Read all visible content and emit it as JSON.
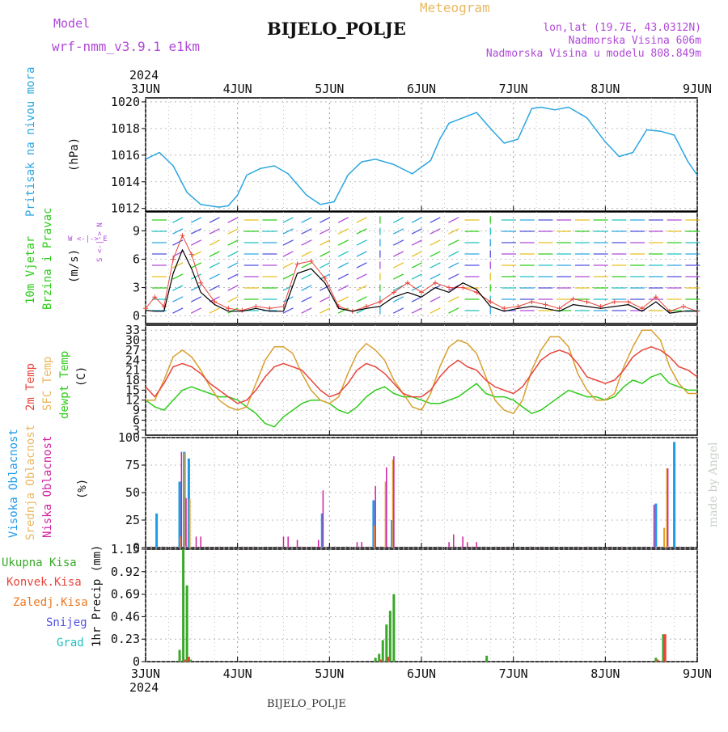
{
  "header": {
    "model_label": "Model",
    "model_name": "wrf-nmm_v3.9.1 e1km",
    "station": "BIJELO_POLJE",
    "product": "Meteogram",
    "location": "lon,lat (19.7E, 43.0312N)",
    "altitude": "Nadmorska Visina 606m",
    "model_altitude": "Nadmorska Visina u modelu 808.849m",
    "year": "2024",
    "footer_station": "BIJELO_POLJE",
    "credit": "made by Angel"
  },
  "colors": {
    "pressure": "#2aa6e0",
    "temp2m": "#e8453c",
    "sfc": "#d8a030",
    "dewpt": "#2ecc1a",
    "high_cloud": "#1e9be8",
    "mid_cloud": "#e0a030",
    "low_cloud": "#d020a0",
    "precip_total": "#3aa82a",
    "precip_conv": "#e8453c",
    "precip_frozen": "#ee7722",
    "snow": "#5050e0",
    "graupel": "#20c0c0",
    "wind_speed": "#000000",
    "wind_gust": "#e8453c",
    "panel_label_purple": "#b04ad8"
  },
  "time_axis": {
    "day_labels": [
      "3JUN",
      "4JUN",
      "5JUN",
      "6JUN",
      "7JUN",
      "8JUN",
      "9JUN"
    ],
    "year_label": "2024"
  },
  "panels": {
    "pressure": {
      "label": "Pritisak na nivou mora",
      "unit": "(hPa)"
    },
    "wind": {
      "label_1": "10m Vjetar",
      "label_2": "Brzina i Pravac",
      "unit": "(m/s)",
      "compass": "W <-|-> E",
      "compass_v": "S <-|-> N"
    },
    "temp": {
      "label_1": "2m Temp",
      "label_2": "SFC Temp",
      "label_3": "dewpt Temp",
      "unit": "(C)"
    },
    "cloud": {
      "label_1": "Visoka Oblacnost",
      "label_2": "Srednja Oblacnost",
      "label_3": "Niska Oblacnost",
      "unit": "(%)"
    },
    "precip": {
      "label_axis": "1hr Precip (mm)",
      "legend": [
        "Ukupna Kisa",
        "Konvek.Kisa",
        "Zaledj.Kisa",
        "Snijeg",
        "Grad"
      ]
    }
  },
  "chart_data": [
    {
      "type": "line",
      "title": "Pritisak na nivou mora",
      "ylabel": "(hPa)",
      "ylim": [
        1011.8,
        1020.3
      ],
      "yticks": [
        1012,
        1014,
        1016,
        1018,
        1020
      ],
      "x_unit": "days since 3JUN 00Z",
      "x": [
        0,
        0.15,
        0.3,
        0.45,
        0.6,
        0.8,
        0.9,
        1.0,
        1.1,
        1.25,
        1.4,
        1.55,
        1.75,
        1.9,
        2.05,
        2.2,
        2.35,
        2.5,
        2.7,
        2.9,
        3.1,
        3.2,
        3.3,
        3.45,
        3.6,
        3.75,
        3.9,
        4.05,
        4.2,
        4.3,
        4.45,
        4.6,
        4.8,
        5.0,
        5.15,
        5.3,
        5.45,
        5.6,
        5.75,
        5.9,
        6.0
      ],
      "series": [
        {
          "name": "pressure",
          "values": [
            1015.7,
            1016.2,
            1015.2,
            1013.2,
            1012.3,
            1012.1,
            1012.2,
            1013.0,
            1014.5,
            1015.0,
            1015.2,
            1014.6,
            1013.0,
            1012.3,
            1012.5,
            1014.5,
            1015.5,
            1015.7,
            1015.3,
            1014.6,
            1015.6,
            1017.2,
            1018.4,
            1018.8,
            1019.2,
            1018.0,
            1016.9,
            1017.2,
            1019.5,
            1019.6,
            1019.4,
            1019.6,
            1018.8,
            1017.0,
            1015.9,
            1016.2,
            1017.9,
            1017.8,
            1017.5,
            1015.5,
            1014.5
          ]
        }
      ]
    },
    {
      "type": "line",
      "title": "10m Vjetar Brzina i Pravac",
      "ylabel": "(m/s)",
      "ylim": [
        -0.8,
        11
      ],
      "yticks": [
        0,
        3,
        6,
        9
      ],
      "x_unit": "days since 3JUN 00Z",
      "x": [
        0,
        0.1,
        0.2,
        0.3,
        0.4,
        0.5,
        0.6,
        0.75,
        0.9,
        1.05,
        1.2,
        1.35,
        1.5,
        1.65,
        1.8,
        1.95,
        2.1,
        2.25,
        2.4,
        2.55,
        2.7,
        2.85,
        3.0,
        3.15,
        3.3,
        3.45,
        3.6,
        3.75,
        3.9,
        4.05,
        4.2,
        4.35,
        4.5,
        4.65,
        4.8,
        4.95,
        5.1,
        5.25,
        5.4,
        5.55,
        5.7,
        5.85,
        6.0
      ],
      "series": [
        {
          "name": "speed",
          "values": [
            0.6,
            0.5,
            0.5,
            4.5,
            7.0,
            5.0,
            2.5,
            1.2,
            0.5,
            0.5,
            0.8,
            0.5,
            0.5,
            4.5,
            5.0,
            3.5,
            0.8,
            0.5,
            0.8,
            1.0,
            2.0,
            2.5,
            2.0,
            3.0,
            2.5,
            3.5,
            2.8,
            1.0,
            0.5,
            0.8,
            1.0,
            0.8,
            0.5,
            1.2,
            1.0,
            0.8,
            1.0,
            1.2,
            0.5,
            1.5,
            0.3,
            0.5,
            0.5
          ]
        },
        {
          "name": "gust",
          "values": [
            0.8,
            2.0,
            1.0,
            6.0,
            8.5,
            6.5,
            3.5,
            1.5,
            0.8,
            0.6,
            1.0,
            0.8,
            1.0,
            5.5,
            5.8,
            4.0,
            1.0,
            0.5,
            1.0,
            1.5,
            2.5,
            3.5,
            2.5,
            3.5,
            3.0,
            3.0,
            2.5,
            1.5,
            0.8,
            1.0,
            1.5,
            1.2,
            0.8,
            1.8,
            1.5,
            1.0,
            1.5,
            1.5,
            0.8,
            2.0,
            0.5,
            1.0,
            0.5
          ]
        }
      ],
      "wind_arrows": [
        {
          "x": 0.15,
          "dir": "W"
        },
        {
          "x": 0.35,
          "dir": "SW"
        },
        {
          "x": 0.55,
          "dir": "SW"
        },
        {
          "x": 0.75,
          "dir": "SW"
        },
        {
          "x": 0.95,
          "dir": "SW"
        },
        {
          "x": 1.15,
          "dir": "W"
        },
        {
          "x": 1.35,
          "dir": "W"
        },
        {
          "x": 1.55,
          "dir": "SW"
        },
        {
          "x": 1.75,
          "dir": "SW"
        },
        {
          "x": 1.95,
          "dir": "SW"
        },
        {
          "x": 2.15,
          "dir": "SW"
        },
        {
          "x": 2.35,
          "dir": "SW"
        },
        {
          "x": 2.55,
          "dir": "S"
        },
        {
          "x": 2.75,
          "dir": "SW"
        },
        {
          "x": 2.95,
          "dir": "NE"
        },
        {
          "x": 3.15,
          "dir": "SW"
        },
        {
          "x": 3.35,
          "dir": "SW"
        },
        {
          "x": 3.55,
          "dir": "W"
        },
        {
          "x": 3.75,
          "dir": "S"
        },
        {
          "x": 3.95,
          "dir": "E"
        },
        {
          "x": 4.15,
          "dir": "E"
        },
        {
          "x": 4.35,
          "dir": "E"
        },
        {
          "x": 4.55,
          "dir": "E"
        },
        {
          "x": 4.75,
          "dir": "E"
        },
        {
          "x": 4.95,
          "dir": "E"
        },
        {
          "x": 5.15,
          "dir": "E"
        },
        {
          "x": 5.35,
          "dir": "E"
        },
        {
          "x": 5.55,
          "dir": "E"
        },
        {
          "x": 5.75,
          "dir": "E"
        },
        {
          "x": 5.95,
          "dir": "E"
        }
      ]
    },
    {
      "type": "line",
      "title": "2m Temp / SFC Temp / dewpt Temp",
      "ylabel": "(C)",
      "ylim": [
        1.5,
        34.5
      ],
      "yticks": [
        3,
        6,
        9,
        12,
        15,
        18,
        21,
        24,
        27,
        30,
        33
      ],
      "x_unit": "days since 3JUN 00Z",
      "x": [
        0,
        0.1,
        0.2,
        0.3,
        0.4,
        0.5,
        0.6,
        0.7,
        0.8,
        0.9,
        1.0,
        1.1,
        1.2,
        1.3,
        1.4,
        1.5,
        1.6,
        1.7,
        1.8,
        1.9,
        2.0,
        2.1,
        2.2,
        2.3,
        2.4,
        2.5,
        2.6,
        2.7,
        2.8,
        2.9,
        3.0,
        3.1,
        3.2,
        3.3,
        3.4,
        3.5,
        3.6,
        3.7,
        3.8,
        3.9,
        4.0,
        4.1,
        4.2,
        4.3,
        4.4,
        4.5,
        4.6,
        4.7,
        4.8,
        4.9,
        5.0,
        5.1,
        5.2,
        5.3,
        5.4,
        5.5,
        5.6,
        5.7,
        5.8,
        5.9,
        6.0
      ],
      "series": [
        {
          "name": "2m Temp",
          "values": [
            16,
            13,
            17,
            22,
            23,
            22,
            20,
            17,
            15,
            13,
            11,
            12,
            15,
            19,
            22,
            23,
            22,
            21,
            18,
            15,
            13,
            14,
            17,
            21,
            23,
            22,
            20,
            17,
            14,
            13,
            13,
            15,
            19,
            22,
            24,
            22,
            21,
            18,
            16,
            15,
            14,
            16,
            20,
            24,
            26,
            27,
            26,
            23,
            19,
            18,
            17,
            18,
            21,
            25,
            27,
            28,
            27,
            25,
            22,
            21,
            19
          ]
        },
        {
          "name": "SFC Temp",
          "values": [
            12,
            12,
            18,
            25,
            27,
            25,
            21,
            16,
            12,
            10,
            9,
            10,
            17,
            24,
            28,
            28,
            26,
            20,
            15,
            12,
            11,
            13,
            20,
            26,
            29,
            27,
            24,
            18,
            14,
            10,
            9,
            14,
            22,
            28,
            30,
            29,
            26,
            19,
            12,
            9,
            8,
            12,
            21,
            27,
            31,
            31,
            28,
            20,
            15,
            12,
            12,
            14,
            22,
            28,
            33,
            33,
            30,
            22,
            17,
            14,
            14
          ]
        },
        {
          "name": "dewpt Temp",
          "values": [
            12,
            10,
            9,
            12,
            15,
            16,
            15,
            14,
            13,
            13,
            12,
            10,
            8,
            5,
            4,
            7,
            9,
            11,
            12,
            12,
            11,
            9,
            8,
            10,
            13,
            15,
            16,
            14,
            13,
            13,
            12,
            11,
            11,
            12,
            13,
            15,
            17,
            14,
            13,
            13,
            12,
            10,
            8,
            9,
            11,
            13,
            15,
            14,
            13,
            13,
            12,
            13,
            16,
            18,
            17,
            19,
            20,
            17,
            16,
            15,
            15
          ]
        }
      ]
    },
    {
      "type": "bar",
      "title": "Oblacnost",
      "ylabel": "(%)",
      "ylim": [
        0,
        100
      ],
      "yticks": [
        0,
        25,
        50,
        75,
        100
      ],
      "x_unit": "days since 3JUN 00Z",
      "series": [
        {
          "name": "Visoka Oblacnost",
          "x": [
            0.12,
            0.37,
            0.42,
            0.47,
            1.92,
            2.48,
            2.68,
            5.55,
            5.75
          ],
          "values": [
            31,
            60,
            87,
            81,
            31,
            43,
            25,
            40,
            96
          ]
        },
        {
          "name": "Srednja Oblacnost",
          "x": [
            0.38,
            0.43,
            0.48,
            2.49,
            2.61,
            2.69,
            5.64,
            5.67
          ],
          "values": [
            10,
            86,
            44,
            20,
            60,
            80,
            18,
            72
          ]
        },
        {
          "name": "Niska Oblacnost",
          "x": [
            0.39,
            0.44,
            0.55,
            0.6,
            1.5,
            1.55,
            1.65,
            1.88,
            1.93,
            2.3,
            2.35,
            2.5,
            2.62,
            2.7,
            3.3,
            3.35,
            3.45,
            3.5,
            3.6,
            5.53,
            5.68
          ],
          "values": [
            87,
            45,
            10,
            10,
            10,
            10,
            7,
            7,
            52,
            5,
            5,
            56,
            73,
            83,
            5,
            12,
            10,
            5,
            5,
            39,
            72
          ]
        }
      ]
    },
    {
      "type": "bar",
      "title": "1hr Precip (mm)",
      "ylabel": "1hr Precip (mm)",
      "ylim": [
        0,
        1.15
      ],
      "yticks": [
        0,
        0.23,
        0.46,
        0.69,
        0.92,
        1.15
      ],
      "x_unit": "days since 3JUN 00Z",
      "series": [
        {
          "name": "Ukupna Kisa",
          "x": [
            0.37,
            0.41,
            0.45,
            0.49,
            2.5,
            2.54,
            2.58,
            2.62,
            2.66,
            2.7,
            3.71,
            5.55,
            5.63
          ],
          "values": [
            0.12,
            1.15,
            0.78,
            0.02,
            0.04,
            0.08,
            0.22,
            0.38,
            0.52,
            0.69,
            0.06,
            0.04,
            0.28
          ]
        },
        {
          "name": "Konvek.Kisa",
          "x": [
            0.43,
            0.47,
            2.56,
            2.64,
            5.57,
            5.65
          ],
          "values": [
            0.02,
            0.05,
            0.02,
            0.05,
            0.02,
            0.28
          ]
        }
      ]
    }
  ]
}
